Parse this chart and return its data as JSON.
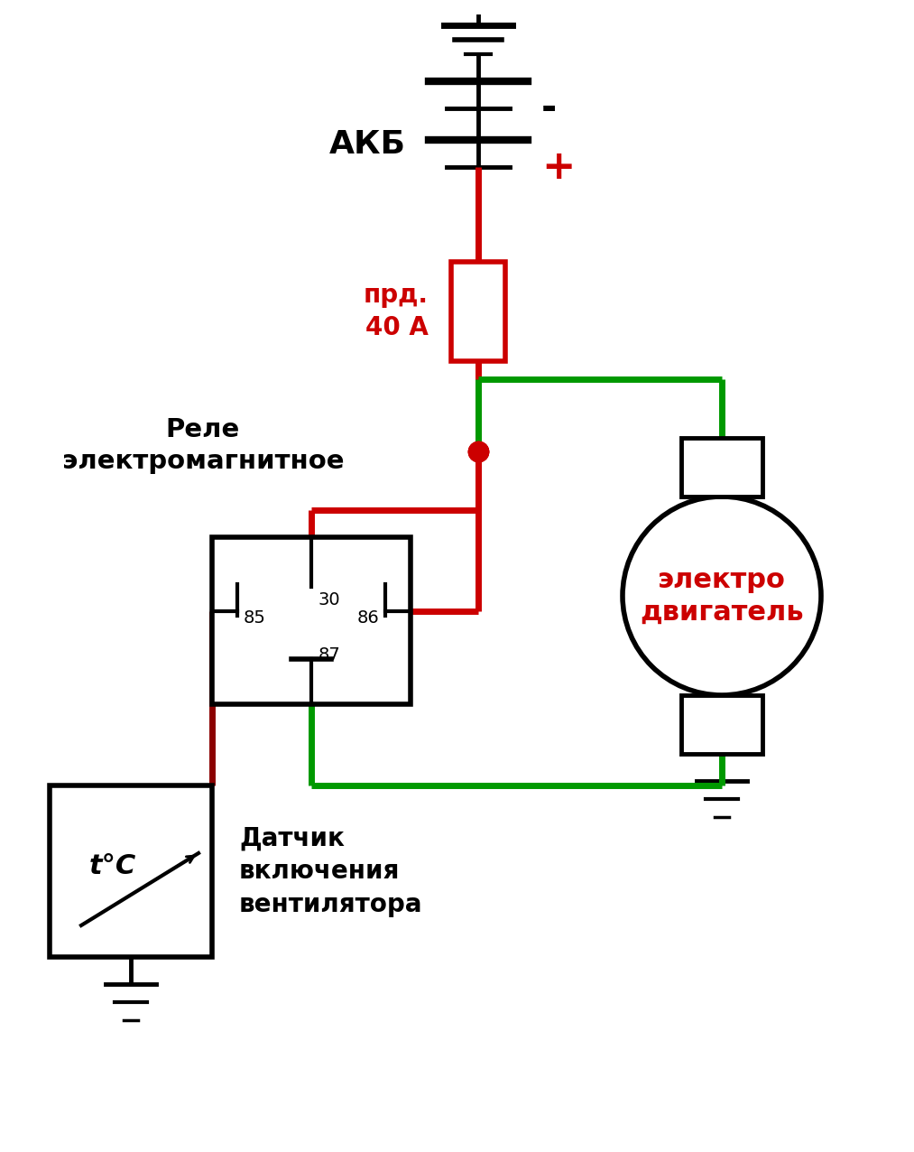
{
  "bg_color": "#ffffff",
  "red": "#cc0000",
  "dark_red": "#8b0000",
  "green": "#009900",
  "black": "#000000",
  "lw_wire": 5.0,
  "lw_comp": 3.5,
  "figsize": [
    10.13,
    12.76
  ],
  "dpi": 100,
  "akb_label": "АКБ",
  "plus_label": "+",
  "minus_label": "-",
  "fuse_label": "прд.\n40 А",
  "relay_label": "Реле\nэлектромагнитное",
  "motor_label": "электро\nдвигатель",
  "sensor_label": "Датчик\nвключения\nвентилятора",
  "pin30": "30",
  "pin85": "85",
  "pin86": "86",
  "pin87": "87",
  "temp_label": "t°C"
}
